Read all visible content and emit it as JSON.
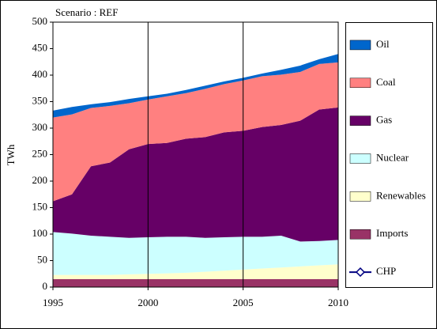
{
  "chart_data": {
    "type": "stacked_area",
    "title": "Scenario : REF",
    "y_label": "TWh",
    "x": [
      1995,
      1996,
      1997,
      1998,
      1999,
      2000,
      2001,
      2002,
      2003,
      2004,
      2005,
      2006,
      2007,
      2008,
      2009,
      2010
    ],
    "xlim": [
      1995,
      2010
    ],
    "xticks": [
      1995,
      2000,
      2005,
      2010
    ],
    "ylim": [
      0,
      500
    ],
    "yticks": [
      0,
      50,
      100,
      150,
      200,
      250,
      300,
      350,
      400,
      450,
      500
    ],
    "xgrid": true,
    "series": [
      {
        "name": "Imports",
        "color": "#993366",
        "values": [
          15,
          15,
          15,
          15,
          15,
          15,
          15,
          15,
          15,
          15,
          15,
          15,
          15,
          15,
          15,
          15
        ]
      },
      {
        "name": "Renewables",
        "color": "#ffffcc",
        "values": [
          8,
          8,
          8,
          8,
          9,
          10,
          11,
          12,
          14,
          16,
          18,
          20,
          22,
          24,
          26,
          28
        ]
      },
      {
        "name": "Nuclear",
        "color": "#ccffff",
        "values": [
          81,
          78,
          74,
          72,
          69,
          69,
          69,
          68,
          64,
          63,
          62,
          60,
          60,
          47,
          46,
          46
        ]
      },
      {
        "name": "Gas",
        "color": "#660066",
        "values": [
          58,
          74,
          131,
          140,
          167,
          176,
          177,
          185,
          190,
          198,
          200,
          207,
          209,
          228,
          248,
          250
        ]
      },
      {
        "name": "Coal",
        "color": "#ff8080",
        "values": [
          158,
          151,
          110,
          107,
          87,
          84,
          88,
          86,
          91,
          91,
          95,
          96,
          95,
          92,
          86,
          85
        ]
      },
      {
        "name": "Oil",
        "color": "#0066cc",
        "values": [
          13,
          14,
          7,
          7,
          8,
          6,
          5,
          6,
          6,
          5,
          5,
          5,
          9,
          12,
          9,
          16
        ]
      },
      {
        "name": "CHP",
        "color": "#000080",
        "line": true,
        "values": [
          null,
          null,
          null,
          null,
          null,
          null,
          null,
          null,
          null,
          null,
          null,
          null,
          null,
          null,
          null,
          null
        ]
      }
    ]
  }
}
